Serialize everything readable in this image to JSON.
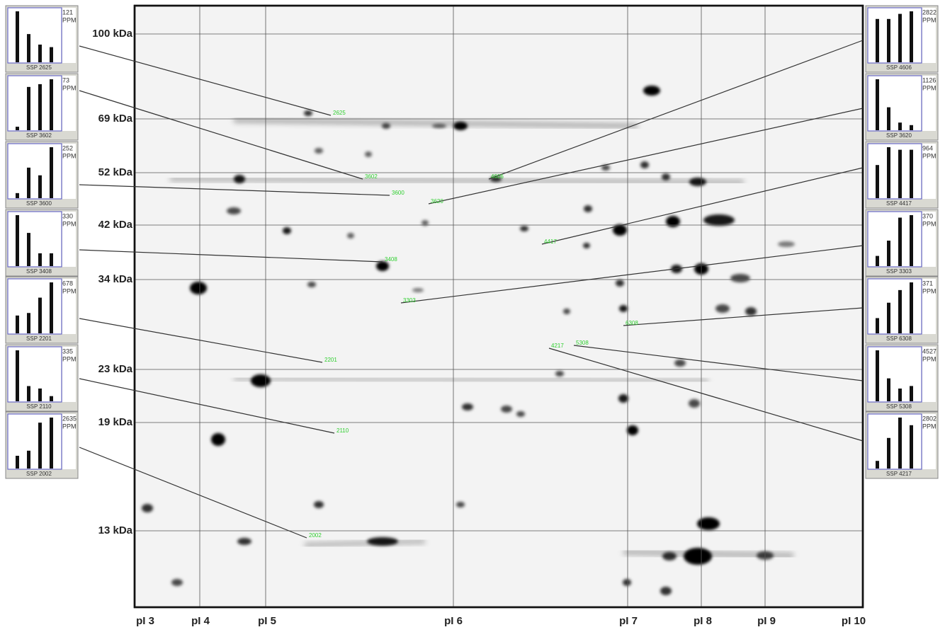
{
  "kda_labels": [
    "100 kDa",
    "69 kDa",
    "52 kDa",
    "42 kDa",
    "34 kDa",
    "23 kDa",
    "19 kDa",
    "13 kDa"
  ],
  "pi_labels": [
    "pI 3",
    "pI 4",
    "pI 5",
    "pI 6",
    "pI 7",
    "pI 8",
    "pI 9",
    "pI 10"
  ],
  "left_panels": [
    {
      "ssp": "SSP 2625",
      "spot": "2625",
      "value": 121,
      "unit": "PPM",
      "bars": [
        121,
        67,
        42,
        36
      ]
    },
    {
      "ssp": "SSP 3602",
      "spot": "3602",
      "value": 73,
      "unit": "PPM",
      "bars": [
        5,
        62,
        66,
        73
      ]
    },
    {
      "ssp": "SSP 3600",
      "spot": "3600",
      "value": 252,
      "unit": "PPM",
      "bars": [
        25,
        151,
        113,
        252
      ]
    },
    {
      "ssp": "SSP 3408",
      "spot": "3408",
      "value": 330,
      "unit": "PPM",
      "bars": [
        330,
        215,
        83,
        83
      ]
    },
    {
      "ssp": "SSP 2201",
      "spot": "2201",
      "value": 678,
      "unit": "PPM",
      "bars": [
        237,
        271,
        475,
        678
      ]
    },
    {
      "ssp": "SSP 2110",
      "spot": "2110",
      "value": 335,
      "unit": "PPM",
      "bars": [
        335,
        100,
        84,
        34
      ]
    },
    {
      "ssp": "SSP 2002",
      "spot": "2002",
      "value": 2635,
      "unit": "PPM",
      "bars": [
        659,
        922,
        2372,
        2635
      ]
    }
  ],
  "right_panels": [
    {
      "ssp": "SSP 4606",
      "spot": "4606",
      "value": 2822,
      "unit": "PPM",
      "bars": [
        2399,
        2399,
        2681,
        2822
      ]
    },
    {
      "ssp": "SSP 3620",
      "spot": "3620",
      "value": 1126,
      "unit": "PPM",
      "bars": [
        1126,
        507,
        169,
        113
      ]
    },
    {
      "ssp": "SSP 4417",
      "spot": "4417",
      "value": 964,
      "unit": "PPM",
      "bars": [
        627,
        964,
        916,
        916
      ]
    },
    {
      "ssp": "SSP 3303",
      "spot": "3303",
      "value": 370,
      "unit": "PPM",
      "bars": [
        74,
        185,
        352,
        370
      ]
    },
    {
      "ssp": "SSP 6308",
      "spot": "6308",
      "value": 371,
      "unit": "PPM",
      "bars": [
        111,
        223,
        315,
        371
      ]
    },
    {
      "ssp": "SSP 5308",
      "spot": "5308",
      "value": 4527,
      "unit": "PPM",
      "bars": [
        4527,
        2037,
        1132,
        1358
      ]
    },
    {
      "ssp": "SSP 4217",
      "spot": "4217",
      "value": 2802,
      "unit": "PPM",
      "bars": [
        420,
        1681,
        2802,
        2382
      ]
    }
  ]
}
